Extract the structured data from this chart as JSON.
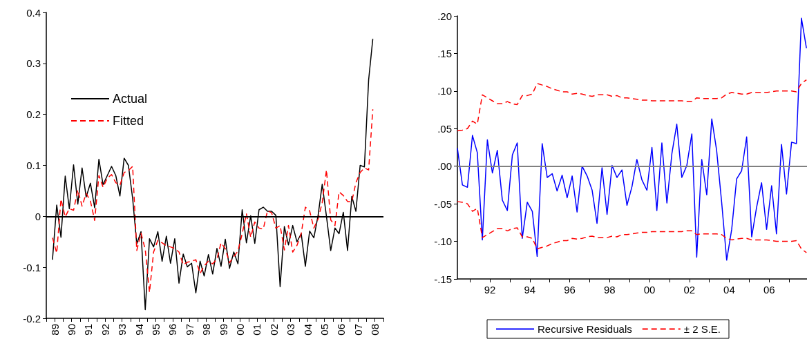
{
  "chart_data": [
    {
      "type": "line",
      "marker": "none",
      "legend": "top left",
      "grid": false,
      "x": [
        "1989-05-15",
        "1989-08-15",
        "1989-11-15",
        "1990-02-15",
        "1990-05-15",
        "1990-08-15",
        "1990-11-15",
        "1991-02-15",
        "1991-05-15",
        "1991-08-15",
        "1991-11-15",
        "1992-02-15",
        "1992-05-15",
        "1992-08-15",
        "1992-11-15",
        "1993-02-15",
        "1993-05-15",
        "1993-08-15",
        "1993-11-15",
        "1994-02-15",
        "1994-05-15",
        "1994-08-15",
        "1994-11-15",
        "1995-02-15",
        "1995-05-15",
        "1995-08-15",
        "1995-11-15",
        "1996-02-15",
        "1996-05-15",
        "1996-08-15",
        "1996-11-15",
        "1997-02-15",
        "1997-05-15",
        "1997-08-15",
        "1997-11-15",
        "1998-02-15",
        "1998-05-15",
        "1998-08-15",
        "1998-11-15",
        "1999-02-15",
        "1999-05-15",
        "1999-08-15",
        "1999-11-15",
        "2000-02-15",
        "2000-05-15",
        "2000-08-15",
        "2000-11-15",
        "2001-02-15",
        "2001-05-15",
        "2001-08-15",
        "2001-11-15",
        "2002-02-15",
        "2002-05-15",
        "2002-08-15",
        "2002-11-15",
        "2003-02-15",
        "2003-05-15",
        "2003-08-15",
        "2003-11-15",
        "2004-02-15",
        "2004-05-15",
        "2004-08-15",
        "2004-11-15",
        "2005-02-15",
        "2005-05-15",
        "2005-08-15",
        "2005-11-15",
        "2006-02-15",
        "2006-05-15",
        "2006-08-15",
        "2006-11-15",
        "2007-02-15",
        "2007-05-15",
        "2007-08-15",
        "2007-11-15",
        "2008-02-15",
        "2008-05-15"
      ],
      "xlim": [
        "1989",
        "2009"
      ],
      "xticks": [
        {
          "value": "1989",
          "label": null
        },
        {
          "value": "1989-07",
          "label": "89"
        },
        {
          "value": "1990",
          "label": null
        },
        {
          "value": "1990-07",
          "label": "90"
        },
        {
          "value": "1991",
          "label": null
        },
        {
          "value": "1991-07",
          "label": "91"
        },
        {
          "value": "1992",
          "label": null
        },
        {
          "value": "1992-07",
          "label": "92"
        },
        {
          "value": "1993",
          "label": null
        },
        {
          "value": "1993-07",
          "label": "93"
        },
        {
          "value": "1994",
          "label": null
        },
        {
          "value": "1994-07",
          "label": "94"
        },
        {
          "value": "1995",
          "label": null
        },
        {
          "value": "1995-07",
          "label": "95"
        },
        {
          "value": "1996",
          "label": null
        },
        {
          "value": "1996-07",
          "label": "96"
        },
        {
          "value": "1997",
          "label": null
        },
        {
          "value": "1997-07",
          "label": "97"
        },
        {
          "value": "1998",
          "label": null
        },
        {
          "value": "1998-07",
          "label": "98"
        },
        {
          "value": "1999",
          "label": null
        },
        {
          "value": "1999-07",
          "label": "99"
        },
        {
          "value": "2000",
          "label": null
        },
        {
          "value": "2000-07",
          "label": "00"
        },
        {
          "value": "2001",
          "label": null
        },
        {
          "value": "2001-07",
          "label": "01"
        },
        {
          "value": "2002",
          "label": null
        },
        {
          "value": "2002-07",
          "label": "02"
        },
        {
          "value": "2003",
          "label": null
        },
        {
          "value": "2003-07",
          "label": "03"
        },
        {
          "value": "2004",
          "label": null
        },
        {
          "value": "2004-07",
          "label": "04"
        },
        {
          "value": "2005",
          "label": null
        },
        {
          "value": "2005-07",
          "label": "05"
        },
        {
          "value": "2006",
          "label": null
        },
        {
          "value": "2006-07",
          "label": "06"
        },
        {
          "value": "2007",
          "label": null
        },
        {
          "value": "2007-07",
          "label": "07"
        },
        {
          "value": "2008",
          "label": null
        },
        {
          "value": "2008-07",
          "label": "08"
        },
        {
          "value": "2009",
          "label": null
        }
      ],
      "ylim": [
        -0.2,
        0.4
      ],
      "yticks": [
        {
          "value": -0.2,
          "label": "-0.2"
        },
        {
          "value": -0.1,
          "label": "-0.1"
        },
        {
          "value": 0,
          "label": "0"
        },
        {
          "value": 0.1,
          "label": "0.1"
        },
        {
          "value": 0.2,
          "label": "0.2"
        },
        {
          "value": 0.3,
          "label": "0.3"
        },
        {
          "value": 0.4,
          "label": "0.4"
        }
      ],
      "ref_lines": [
        {
          "axis": "y",
          "value": 0,
          "label": null,
          "color": "#000000"
        }
      ],
      "series": [
        {
          "name": "Actual",
          "color": "#000000",
          "line_style": "solid",
          "values": [
            -0.085,
            0.022,
            -0.041,
            0.079,
            0.015,
            0.101,
            0.024,
            0.095,
            0.038,
            0.065,
            0.017,
            0.112,
            0.062,
            0.08,
            0.098,
            0.08,
            0.04,
            0.114,
            0.1,
            0.035,
            -0.054,
            -0.03,
            -0.183,
            -0.044,
            -0.06,
            -0.03,
            -0.088,
            -0.039,
            -0.092,
            -0.044,
            -0.131,
            -0.074,
            -0.099,
            -0.092,
            -0.15,
            -0.088,
            -0.117,
            -0.075,
            -0.113,
            -0.063,
            -0.098,
            -0.045,
            -0.102,
            -0.07,
            -0.093,
            0.013,
            -0.052,
            0.001,
            -0.053,
            0.013,
            0.018,
            0.01,
            0.01,
            0.002,
            -0.138,
            -0.02,
            -0.056,
            -0.018,
            -0.05,
            -0.034,
            -0.098,
            -0.029,
            -0.042,
            0.002,
            0.063,
            0.0,
            -0.067,
            -0.023,
            -0.034,
            0.008,
            -0.067,
            0.039,
            0.01,
            0.1,
            0.097,
            0.268,
            0.348
          ]
        },
        {
          "name": "Fitted",
          "color": "#ff0000",
          "line_style": "dashed",
          "values": [
            -0.042,
            -0.072,
            0.034,
            -0.001,
            0.015,
            0.012,
            0.052,
            0.02,
            0.045,
            0.03,
            -0.008,
            0.08,
            0.057,
            0.075,
            0.082,
            0.066,
            0.061,
            0.086,
            0.09,
            0.098,
            -0.067,
            -0.033,
            -0.065,
            -0.149,
            -0.07,
            -0.047,
            -0.052,
            -0.058,
            -0.06,
            -0.063,
            -0.07,
            -0.095,
            -0.09,
            -0.088,
            -0.085,
            -0.112,
            -0.097,
            -0.088,
            -0.093,
            -0.084,
            -0.052,
            -0.063,
            -0.091,
            -0.079,
            -0.068,
            -0.034,
            0.005,
            -0.041,
            -0.011,
            -0.023,
            -0.025,
            0.011,
            0.007,
            -0.023,
            -0.018,
            -0.066,
            -0.018,
            -0.07,
            -0.057,
            -0.034,
            0.018,
            0.011,
            -0.023,
            -0.005,
            0.027,
            0.091,
            -0.007,
            -0.018,
            0.048,
            0.041,
            0.029,
            0.029,
            0.066,
            0.086,
            0.095,
            0.091,
            0.21
          ]
        }
      ]
    },
    {
      "type": "line",
      "marker": "none",
      "legend": "bottom",
      "grid": false,
      "x": [
        "1990-05-15",
        "1990-08-15",
        "1990-11-15",
        "1991-02-15",
        "1991-05-15",
        "1991-08-15",
        "1991-11-15",
        "1992-02-15",
        "1992-05-15",
        "1992-08-15",
        "1992-11-15",
        "1993-02-15",
        "1993-05-15",
        "1993-08-15",
        "1993-11-15",
        "1994-02-15",
        "1994-05-15",
        "1994-08-15",
        "1994-11-15",
        "1995-02-15",
        "1995-05-15",
        "1995-08-15",
        "1995-11-15",
        "1996-02-15",
        "1996-05-15",
        "1996-08-15",
        "1996-11-15",
        "1997-02-15",
        "1997-05-15",
        "1997-08-15",
        "1997-11-15",
        "1998-02-15",
        "1998-05-15",
        "1998-08-15",
        "1998-11-15",
        "1999-02-15",
        "1999-05-15",
        "1999-08-15",
        "1999-11-15",
        "2000-02-15",
        "2000-05-15",
        "2000-08-15",
        "2000-11-15",
        "2001-02-15",
        "2001-05-15",
        "2001-08-15",
        "2001-11-15",
        "2002-02-15",
        "2002-05-15",
        "2002-08-15",
        "2002-11-15",
        "2003-02-15",
        "2003-05-15",
        "2003-08-15",
        "2003-11-15",
        "2004-02-15",
        "2004-05-15",
        "2004-08-15",
        "2004-11-15",
        "2005-02-15",
        "2005-05-15",
        "2005-08-15",
        "2005-11-15",
        "2006-02-15",
        "2006-05-15",
        "2006-08-15",
        "2006-11-15",
        "2007-02-15",
        "2007-05-15",
        "2007-08-15",
        "2007-11-15"
      ],
      "xlim": [
        "1990-05-15",
        "2007-11-25"
      ],
      "xticks": [
        {
          "value": "1991",
          "label": null
        },
        {
          "value": "1992",
          "label": "92"
        },
        {
          "value": "1993",
          "label": null
        },
        {
          "value": "1994",
          "label": "94"
        },
        {
          "value": "1995",
          "label": null
        },
        {
          "value": "1996",
          "label": "96"
        },
        {
          "value": "1997",
          "label": null
        },
        {
          "value": "1998",
          "label": "98"
        },
        {
          "value": "1999",
          "label": null
        },
        {
          "value": "2000",
          "label": "00"
        },
        {
          "value": "2001",
          "label": null
        },
        {
          "value": "2002",
          "label": "02"
        },
        {
          "value": "2003",
          "label": null
        },
        {
          "value": "2004",
          "label": "04"
        },
        {
          "value": "2005",
          "label": null
        },
        {
          "value": "2006",
          "label": "06"
        },
        {
          "value": "2007",
          "label": null
        }
      ],
      "ylim": [
        -0.15,
        0.2
      ],
      "yticks": [
        {
          "value": -0.15,
          "label": "-.15"
        },
        {
          "value": -0.1,
          "label": "-.10"
        },
        {
          "value": -0.05,
          "label": "-.05"
        },
        {
          "value": 0,
          "label": ".00"
        },
        {
          "value": 0.05,
          "label": ".05"
        },
        {
          "value": 0.1,
          "label": ".10"
        },
        {
          "value": 0.15,
          "label": ".15"
        },
        {
          "value": 0.2,
          "label": ".20"
        }
      ],
      "ref_lines": [
        {
          "axis": "y",
          "value": 0,
          "label": null,
          "color": "#808080"
        }
      ],
      "series": [
        {
          "name": "Recursive Residuals",
          "color": "#0000ff",
          "line_style": "solid",
          "values": [
            0.024,
            -0.025,
            -0.028,
            0.041,
            0.018,
            -0.098,
            0.035,
            -0.009,
            0.021,
            -0.045,
            -0.059,
            0.015,
            0.031,
            -0.096,
            -0.048,
            -0.06,
            -0.12,
            0.03,
            -0.015,
            -0.01,
            -0.033,
            -0.012,
            -0.042,
            -0.013,
            -0.061,
            0,
            -0.013,
            -0.032,
            -0.076,
            -0.002,
            -0.064,
            0.001,
            -0.015,
            -0.005,
            -0.052,
            -0.027,
            0.009,
            -0.018,
            -0.032,
            0.025,
            -0.059,
            0.031,
            -0.049,
            0.017,
            0.056,
            -0.015,
            0.001,
            0.043,
            -0.121,
            0.009,
            -0.038,
            0.063,
            0.021,
            -0.048,
            -0.125,
            -0.084,
            -0.017,
            -0.006,
            0.039,
            -0.094,
            -0.055,
            -0.022,
            -0.084,
            -0.026,
            -0.09,
            0.029,
            -0.037,
            0.032,
            0.03,
            0.197,
            0.157
          ]
        },
        {
          "name": "± 2 S.E.",
          "color": "#ff0000",
          "line_style": "dashed",
          "values": [
            0.047,
            0.048,
            0.05,
            0.06,
            0.056,
            0.095,
            0.091,
            0.087,
            0.083,
            0.083,
            0.086,
            0.083,
            0.082,
            0.094,
            0.094,
            0.096,
            0.11,
            0.108,
            0.106,
            0.103,
            0.101,
            0.099,
            0.099,
            0.096,
            0.097,
            0.096,
            0.094,
            0.093,
            0.095,
            0.095,
            0.095,
            0.093,
            0.094,
            0.091,
            0.091,
            0.09,
            0.089,
            0.088,
            0.088,
            0.087,
            0.087,
            0.087,
            0.087,
            0.087,
            0.087,
            0.087,
            0.086,
            0.086,
            0.091,
            0.09,
            0.09,
            0.09,
            0.09,
            0.091,
            0.096,
            0.098,
            0.097,
            0.096,
            0.096,
            0.098,
            0.098,
            0.098,
            0.098,
            0.099,
            0.1,
            0.1,
            0.1,
            0.1,
            0.099,
            0.11,
            0.115
          ]
        },
        {
          "color": "#ff0000",
          "line_style": "dashed",
          "values": [
            -0.047,
            -0.048,
            -0.05,
            -0.06,
            -0.056,
            -0.095,
            -0.091,
            -0.087,
            -0.083,
            -0.083,
            -0.086,
            -0.083,
            -0.082,
            -0.094,
            -0.094,
            -0.096,
            -0.11,
            -0.108,
            -0.106,
            -0.103,
            -0.101,
            -0.099,
            -0.099,
            -0.096,
            -0.097,
            -0.096,
            -0.094,
            -0.093,
            -0.095,
            -0.095,
            -0.095,
            -0.093,
            -0.094,
            -0.091,
            -0.091,
            -0.09,
            -0.089,
            -0.088,
            -0.088,
            -0.087,
            -0.087,
            -0.087,
            -0.087,
            -0.087,
            -0.087,
            -0.087,
            -0.086,
            -0.086,
            -0.091,
            -0.09,
            -0.09,
            -0.09,
            -0.09,
            -0.091,
            -0.096,
            -0.098,
            -0.097,
            -0.096,
            -0.096,
            -0.098,
            -0.098,
            -0.098,
            -0.098,
            -0.099,
            -0.1,
            -0.1,
            -0.1,
            -0.1,
            -0.099,
            -0.11,
            -0.115
          ]
        }
      ]
    }
  ]
}
